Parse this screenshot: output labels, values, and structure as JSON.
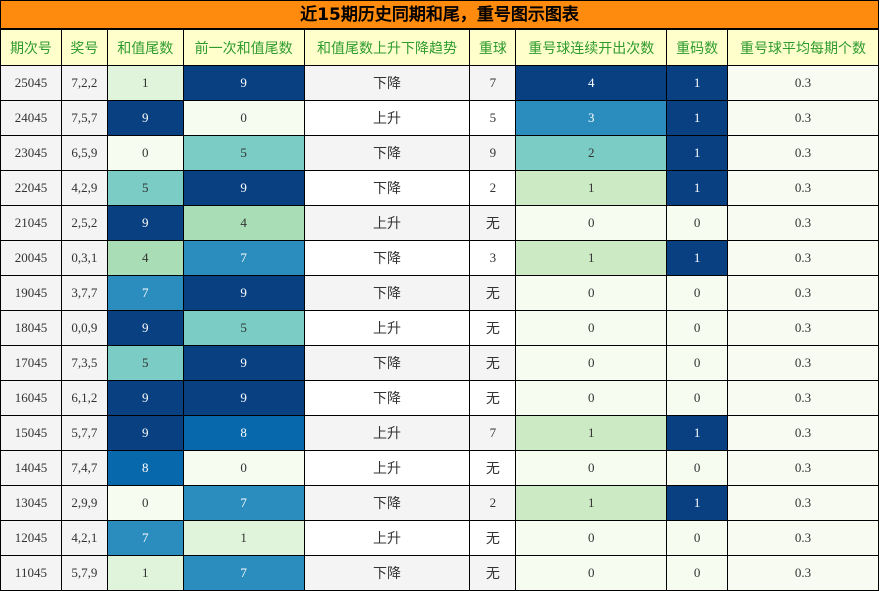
{
  "title": "近15期历史同期和尾，重号图示图表",
  "headers": [
    "期次号",
    "奖号",
    "和值尾数",
    "前一次和值尾数",
    "和值尾数上升下降趋势",
    "重球",
    "重号球连续开出次数",
    "重码数",
    "重号球平均每期个数"
  ],
  "rows": [
    {
      "period": "25045",
      "numbers": "7,2,2",
      "sum_tail": "1",
      "prev_sum_tail": "9",
      "trend": "下降",
      "repeat_ball": "7",
      "consecutive": "4",
      "repeat_count": "1",
      "avg": "0.3"
    },
    {
      "period": "24045",
      "numbers": "7,5,7",
      "sum_tail": "9",
      "prev_sum_tail": "0",
      "trend": "上升",
      "repeat_ball": "5",
      "consecutive": "3",
      "repeat_count": "1",
      "avg": "0.3"
    },
    {
      "period": "23045",
      "numbers": "6,5,9",
      "sum_tail": "0",
      "prev_sum_tail": "5",
      "trend": "下降",
      "repeat_ball": "9",
      "consecutive": "2",
      "repeat_count": "1",
      "avg": "0.3"
    },
    {
      "period": "22045",
      "numbers": "4,2,9",
      "sum_tail": "5",
      "prev_sum_tail": "9",
      "trend": "下降",
      "repeat_ball": "2",
      "consecutive": "1",
      "repeat_count": "1",
      "avg": "0.3"
    },
    {
      "period": "21045",
      "numbers": "2,5,2",
      "sum_tail": "9",
      "prev_sum_tail": "4",
      "trend": "上升",
      "repeat_ball": "无",
      "consecutive": "0",
      "repeat_count": "0",
      "avg": "0.3"
    },
    {
      "period": "20045",
      "numbers": "0,3,1",
      "sum_tail": "4",
      "prev_sum_tail": "7",
      "trend": "下降",
      "repeat_ball": "3",
      "consecutive": "1",
      "repeat_count": "1",
      "avg": "0.3"
    },
    {
      "period": "19045",
      "numbers": "3,7,7",
      "sum_tail": "7",
      "prev_sum_tail": "9",
      "trend": "下降",
      "repeat_ball": "无",
      "consecutive": "0",
      "repeat_count": "0",
      "avg": "0.3"
    },
    {
      "period": "18045",
      "numbers": "0,0,9",
      "sum_tail": "9",
      "prev_sum_tail": "5",
      "trend": "上升",
      "repeat_ball": "无",
      "consecutive": "0",
      "repeat_count": "0",
      "avg": "0.3"
    },
    {
      "period": "17045",
      "numbers": "7,3,5",
      "sum_tail": "5",
      "prev_sum_tail": "9",
      "trend": "下降",
      "repeat_ball": "无",
      "consecutive": "0",
      "repeat_count": "0",
      "avg": "0.3"
    },
    {
      "period": "16045",
      "numbers": "6,1,2",
      "sum_tail": "9",
      "prev_sum_tail": "9",
      "trend": "下降",
      "repeat_ball": "无",
      "consecutive": "0",
      "repeat_count": "0",
      "avg": "0.3"
    },
    {
      "period": "15045",
      "numbers": "5,7,7",
      "sum_tail": "9",
      "prev_sum_tail": "8",
      "trend": "上升",
      "repeat_ball": "7",
      "consecutive": "1",
      "repeat_count": "1",
      "avg": "0.3"
    },
    {
      "period": "14045",
      "numbers": "7,4,7",
      "sum_tail": "8",
      "prev_sum_tail": "0",
      "trend": "上升",
      "repeat_ball": "无",
      "consecutive": "0",
      "repeat_count": "0",
      "avg": "0.3"
    },
    {
      "period": "13045",
      "numbers": "2,9,9",
      "sum_tail": "0",
      "prev_sum_tail": "7",
      "trend": "下降",
      "repeat_ball": "2",
      "consecutive": "1",
      "repeat_count": "1",
      "avg": "0.3"
    },
    {
      "period": "12045",
      "numbers": "4,2,1",
      "sum_tail": "7",
      "prev_sum_tail": "1",
      "trend": "上升",
      "repeat_ball": "无",
      "consecutive": "0",
      "repeat_count": "0",
      "avg": "0.3"
    },
    {
      "period": "11045",
      "numbers": "5,7,9",
      "sum_tail": "1",
      "prev_sum_tail": "7",
      "trend": "下降",
      "repeat_ball": "无",
      "consecutive": "0",
      "repeat_count": "0",
      "avg": "0.3"
    }
  ],
  "colors": {
    "title_bg": "#ff8b0e",
    "header_bg": "#ffffcc",
    "header_text": "#2e9b2e",
    "scale": [
      "#f7fcf0",
      "#e0f3db",
      "#ccebc5",
      "#a8ddb5",
      "#7bccc4",
      "#4eb3d3",
      "#2b8cbe",
      "#0868ac",
      "#084081"
    ]
  }
}
